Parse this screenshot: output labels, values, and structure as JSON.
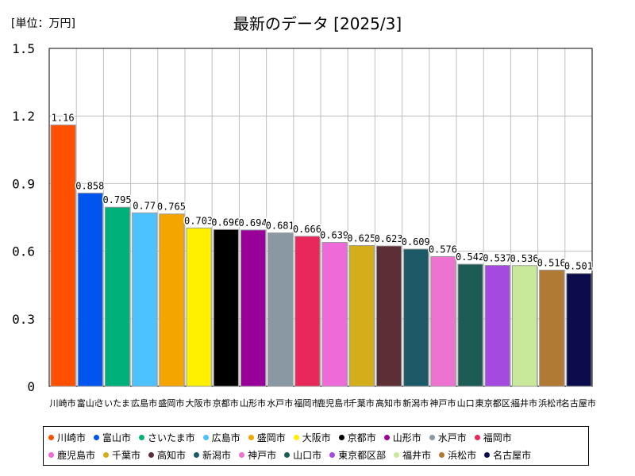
{
  "unit_label": "[単位：万円]",
  "chart_data": {
    "type": "bar",
    "title": "最新のデータ [2025/3]",
    "ylim": [
      0,
      1.5
    ],
    "yticks": [
      0,
      0.3,
      0.6,
      0.9,
      1.2,
      1.5
    ],
    "ytick_labels": [
      "0",
      "0.3",
      "0.6",
      "0.9",
      "1.2",
      "1.5"
    ],
    "grid": true,
    "categories": [
      "川崎市",
      "富山市",
      "さいたま市",
      "広島市",
      "盛岡市",
      "大阪市",
      "京都市",
      "山形市",
      "水戸市",
      "福岡市",
      "鹿児島市",
      "千葉市",
      "高知市",
      "新潟市",
      "神戸市",
      "山口市",
      "東京都区部",
      "福井市",
      "浜松市",
      "名古屋市"
    ],
    "values": [
      1.16,
      0.858,
      0.795,
      0.77,
      0.765,
      0.703,
      0.696,
      0.694,
      0.681,
      0.666,
      0.639,
      0.625,
      0.623,
      0.609,
      0.576,
      0.542,
      0.537,
      0.536,
      0.516,
      0.501
    ],
    "value_labels": [
      "1.16",
      "0.858",
      "0.795",
      "0.77",
      "0.765",
      "0.703",
      "0.696",
      "0.694",
      "0.681",
      "0.666",
      "0.639",
      "0.625",
      "0.623",
      "0.609",
      "0.576",
      "0.542",
      "0.537",
      "0.536",
      "0.516",
      "0.501"
    ],
    "colors": [
      "#ff5000",
      "#0055ee",
      "#00b07a",
      "#4cc3ff",
      "#f5a500",
      "#fff000",
      "#000000",
      "#990099",
      "#8a98a4",
      "#e8285a",
      "#ee6ad8",
      "#d4ad1a",
      "#5c2e36",
      "#1d5a68",
      "#ee72d0",
      "#1c5c55",
      "#a44ade",
      "#c9e99a",
      "#b07a34",
      "#0c0c4c"
    ],
    "legend_position": "bottom"
  }
}
